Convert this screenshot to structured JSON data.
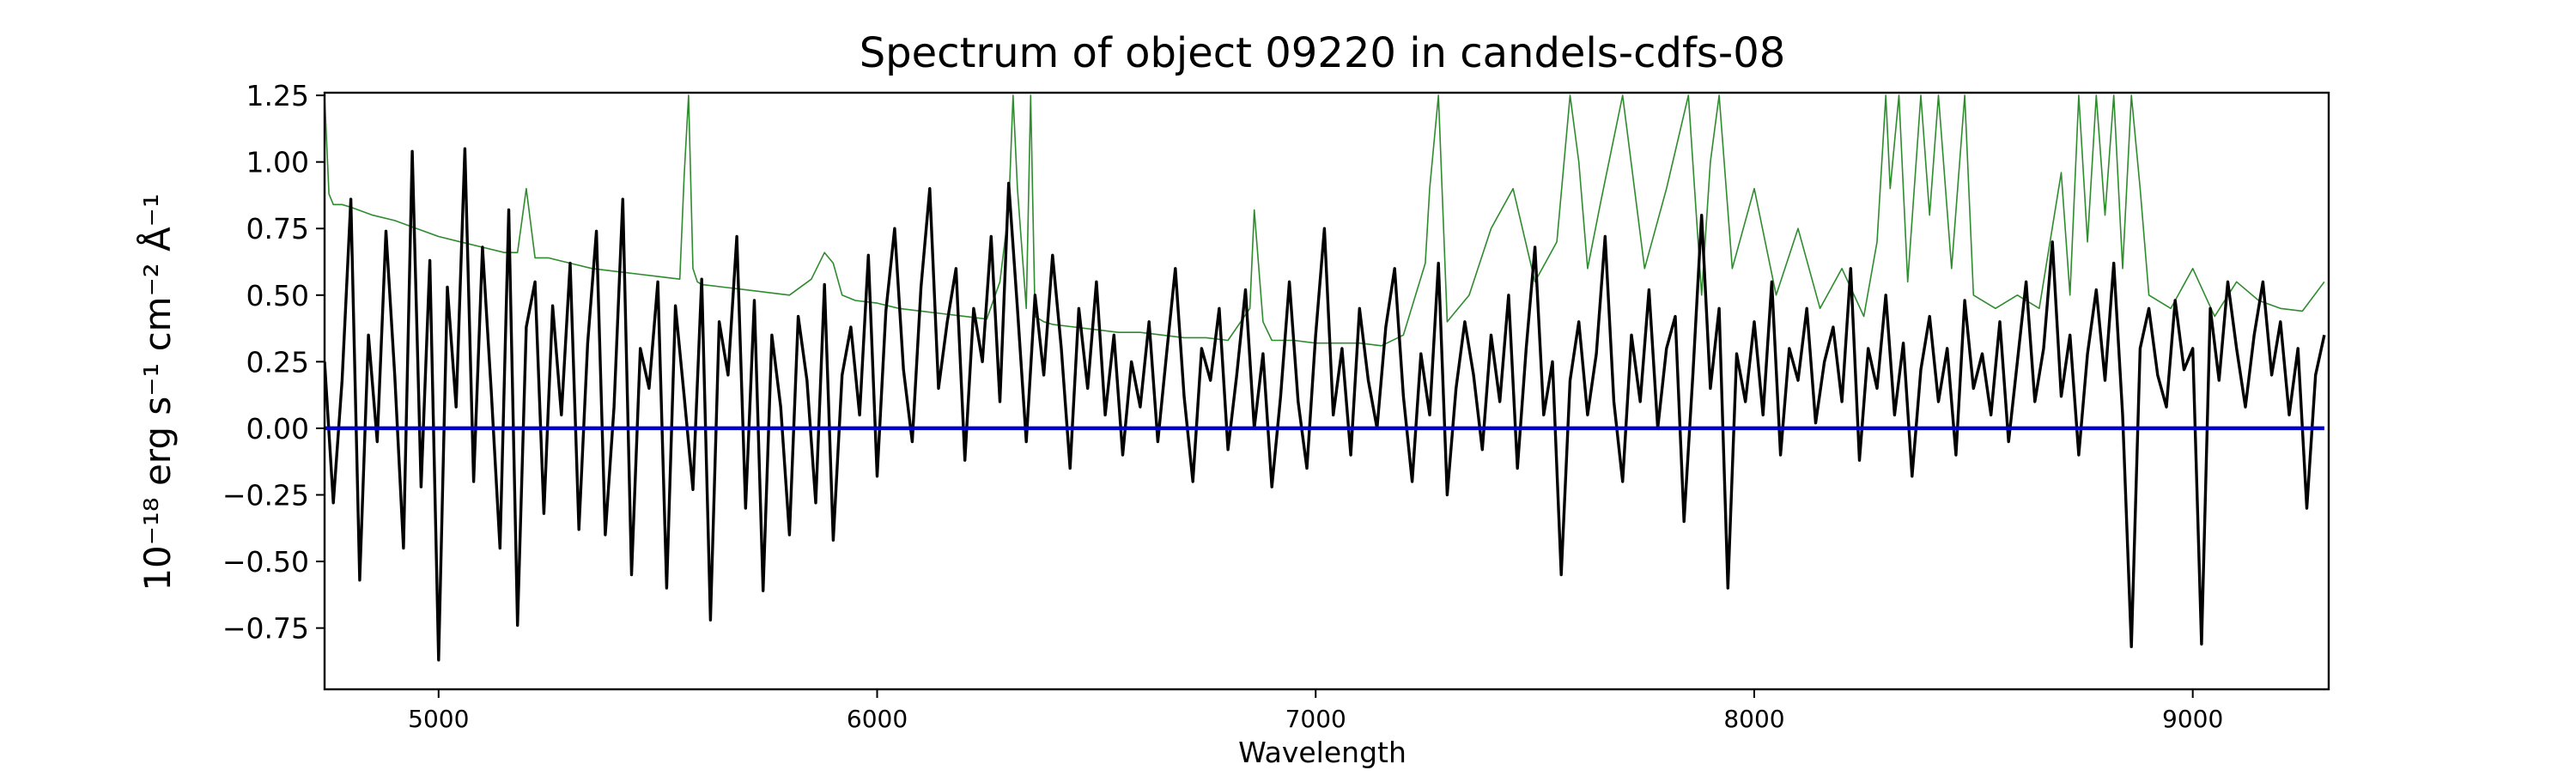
{
  "chart_data": {
    "type": "line",
    "title": "Spectrum of object 09220 in candels-cdfs-08",
    "xlabel": "Wavelength",
    "ylabel": "10⁻¹⁸ erg s⁻¹ cm⁻² Å⁻¹",
    "xlim": [
      4740,
      9310
    ],
    "ylim": [
      -0.98,
      1.26
    ],
    "xticks": [
      5000,
      6000,
      7000,
      8000,
      9000
    ],
    "yticks": [
      -0.75,
      -0.5,
      -0.25,
      0.0,
      0.25,
      0.5,
      0.75,
      1.0,
      1.25
    ],
    "ytick_labels": [
      "−0.75",
      "−0.50",
      "−0.25",
      "0.00",
      "0.25",
      "0.50",
      "0.75",
      "1.00",
      "1.25"
    ],
    "grid": false,
    "legend": "none",
    "series": [
      {
        "role": "flux",
        "color": "#000000",
        "x": [
          4740,
          4760,
          4780,
          4800,
          4820,
          4840,
          4860,
          4880,
          4900,
          4920,
          4940,
          4960,
          4980,
          5000,
          5020,
          5040,
          5060,
          5080,
          5100,
          5120,
          5140,
          5160,
          5180,
          5200,
          5220,
          5240,
          5260,
          5280,
          5300,
          5320,
          5340,
          5360,
          5380,
          5400,
          5420,
          5440,
          5460,
          5480,
          5500,
          5520,
          5540,
          5560,
          5580,
          5600,
          5620,
          5640,
          5660,
          5680,
          5700,
          5720,
          5740,
          5760,
          5780,
          5800,
          5820,
          5840,
          5860,
          5880,
          5900,
          5920,
          5940,
          5960,
          5980,
          6000,
          6020,
          6040,
          6060,
          6080,
          6100,
          6120,
          6140,
          6160,
          6180,
          6200,
          6220,
          6240,
          6260,
          6280,
          6300,
          6320,
          6340,
          6360,
          6380,
          6400,
          6420,
          6440,
          6460,
          6480,
          6500,
          6520,
          6540,
          6560,
          6580,
          6600,
          6620,
          6640,
          6660,
          6680,
          6700,
          6720,
          6740,
          6760,
          6780,
          6800,
          6820,
          6840,
          6860,
          6880,
          6900,
          6920,
          6940,
          6960,
          6980,
          7000,
          7020,
          7040,
          7060,
          7080,
          7100,
          7120,
          7140,
          7160,
          7180,
          7200,
          7220,
          7240,
          7260,
          7280,
          7300,
          7320,
          7340,
          7360,
          7380,
          7400,
          7420,
          7440,
          7460,
          7480,
          7500,
          7520,
          7540,
          7560,
          7580,
          7600,
          7620,
          7640,
          7660,
          7680,
          7700,
          7720,
          7740,
          7760,
          7780,
          7800,
          7820,
          7840,
          7860,
          7880,
          7900,
          7920,
          7940,
          7960,
          7980,
          8000,
          8020,
          8040,
          8060,
          8080,
          8100,
          8120,
          8140,
          8160,
          8180,
          8200,
          8220,
          8240,
          8260,
          8280,
          8300,
          8320,
          8340,
          8360,
          8380,
          8400,
          8420,
          8440,
          8460,
          8480,
          8500,
          8520,
          8540,
          8560,
          8580,
          8600,
          8620,
          8640,
          8660,
          8680,
          8700,
          8720,
          8740,
          8760,
          8780,
          8800,
          8820,
          8840,
          8860,
          8880,
          8900,
          8920,
          8940,
          8960,
          8980,
          9000,
          9020,
          9040,
          9060,
          9080,
          9100,
          9120,
          9140,
          9160,
          9180,
          9200,
          9220,
          9240,
          9260,
          9280,
          9300
        ],
        "y": [
          0.25,
          -0.28,
          0.18,
          0.86,
          -0.57,
          0.35,
          -0.05,
          0.74,
          0.2,
          -0.45,
          1.04,
          -0.22,
          0.63,
          -0.87,
          0.53,
          0.08,
          1.05,
          -0.2,
          0.68,
          0.14,
          -0.45,
          0.82,
          -0.74,
          0.38,
          0.55,
          -0.32,
          0.46,
          0.05,
          0.62,
          -0.38,
          0.32,
          0.74,
          -0.4,
          0.08,
          0.86,
          -0.55,
          0.3,
          0.15,
          0.55,
          -0.6,
          0.46,
          0.12,
          -0.23,
          0.56,
          -0.72,
          0.4,
          0.2,
          0.72,
          -0.3,
          0.48,
          -0.61,
          0.35,
          0.08,
          -0.4,
          0.42,
          0.18,
          -0.28,
          0.54,
          -0.42,
          0.2,
          0.38,
          0.05,
          0.65,
          -0.18,
          0.44,
          0.75,
          0.22,
          -0.05,
          0.53,
          0.9,
          0.15,
          0.4,
          0.6,
          -0.12,
          0.45,
          0.25,
          0.72,
          0.1,
          0.92,
          0.45,
          -0.05,
          0.5,
          0.2,
          0.65,
          0.3,
          -0.15,
          0.45,
          0.15,
          0.55,
          0.05,
          0.35,
          -0.1,
          0.25,
          0.08,
          0.4,
          -0.05,
          0.28,
          0.6,
          0.12,
          -0.2,
          0.3,
          0.18,
          0.45,
          -0.08,
          0.2,
          0.52,
          0.0,
          0.28,
          -0.22,
          0.12,
          0.55,
          0.1,
          -0.15,
          0.35,
          0.75,
          0.05,
          0.3,
          -0.1,
          0.45,
          0.18,
          0.0,
          0.38,
          0.6,
          0.12,
          -0.2,
          0.28,
          0.05,
          0.62,
          -0.25,
          0.15,
          0.4,
          0.2,
          -0.08,
          0.35,
          0.1,
          0.5,
          -0.15,
          0.3,
          0.68,
          0.05,
          0.25,
          -0.55,
          0.18,
          0.4,
          0.05,
          0.28,
          0.72,
          0.1,
          -0.2,
          0.35,
          0.1,
          0.52,
          0.0,
          0.3,
          0.42,
          -0.35,
          0.2,
          0.8,
          0.15,
          0.45,
          -0.6,
          0.28,
          0.1,
          0.4,
          0.05,
          0.55,
          -0.1,
          0.3,
          0.18,
          0.45,
          0.02,
          0.25,
          0.38,
          0.1,
          0.6,
          -0.12,
          0.3,
          0.15,
          0.5,
          0.05,
          0.32,
          -0.18,
          0.22,
          0.42,
          0.1,
          0.3,
          -0.1,
          0.48,
          0.15,
          0.28,
          0.05,
          0.4,
          -0.05,
          0.25,
          0.55,
          0.1,
          0.3,
          0.7,
          0.12,
          0.35,
          -0.1,
          0.28,
          0.52,
          0.18,
          0.62,
          0.05,
          -0.82,
          0.3,
          0.45,
          0.2,
          0.08,
          0.48,
          0.22,
          0.3,
          -0.81,
          0.45,
          0.18,
          0.55,
          0.3,
          0.08,
          0.35,
          0.55,
          0.2,
          0.4,
          0.05,
          0.3,
          -0.3,
          0.2,
          0.35
        ],
        "label": ""
      },
      {
        "role": "uncertainty",
        "color": "#2e8b2e",
        "x": [
          4740,
          4750,
          4760,
          4780,
          4800,
          4850,
          4900,
          4950,
          5000,
          5050,
          5100,
          5150,
          5180,
          5200,
          5220,
          5250,
          5300,
          5350,
          5400,
          5450,
          5500,
          5550,
          5560,
          5570,
          5580,
          5590,
          5600,
          5650,
          5700,
          5750,
          5800,
          5850,
          5880,
          5900,
          5920,
          5950,
          6000,
          6050,
          6100,
          6150,
          6200,
          6250,
          6280,
          6300,
          6310,
          6320,
          6340,
          6350,
          6360,
          6380,
          6400,
          6450,
          6500,
          6550,
          6600,
          6650,
          6700,
          6750,
          6800,
          6850,
          6860,
          6880,
          6900,
          6950,
          7000,
          7050,
          7100,
          7150,
          7200,
          7250,
          7260,
          7280,
          7300,
          7350,
          7400,
          7450,
          7500,
          7550,
          7580,
          7600,
          7620,
          7650,
          7700,
          7750,
          7800,
          7850,
          7880,
          7900,
          7920,
          7950,
          8000,
          8050,
          8100,
          8150,
          8200,
          8250,
          8280,
          8300,
          8310,
          8330,
          8350,
          8380,
          8400,
          8420,
          8450,
          8480,
          8500,
          8550,
          8600,
          8650,
          8700,
          8720,
          8740,
          8760,
          8780,
          8800,
          8820,
          8840,
          8860,
          8880,
          8900,
          8950,
          9000,
          9050,
          9100,
          9150,
          9200,
          9250,
          9300
        ],
        "y": [
          1.25,
          0.88,
          0.84,
          0.84,
          0.83,
          0.8,
          0.78,
          0.75,
          0.72,
          0.7,
          0.68,
          0.66,
          0.66,
          0.9,
          0.64,
          0.64,
          0.62,
          0.6,
          0.59,
          0.58,
          0.57,
          0.56,
          0.95,
          1.25,
          0.6,
          0.55,
          0.54,
          0.53,
          0.52,
          0.51,
          0.5,
          0.56,
          0.66,
          0.62,
          0.5,
          0.48,
          0.47,
          0.45,
          0.44,
          0.43,
          0.42,
          0.41,
          0.55,
          0.82,
          1.25,
          0.9,
          0.45,
          1.25,
          0.42,
          0.4,
          0.39,
          0.38,
          0.37,
          0.36,
          0.36,
          0.35,
          0.34,
          0.34,
          0.33,
          0.45,
          0.82,
          0.4,
          0.33,
          0.33,
          0.32,
          0.32,
          0.32,
          0.31,
          0.35,
          0.62,
          0.9,
          1.25,
          0.4,
          0.5,
          0.75,
          0.9,
          0.55,
          0.7,
          1.25,
          1.0,
          0.6,
          0.85,
          1.25,
          0.6,
          0.9,
          1.25,
          0.5,
          1.0,
          1.25,
          0.6,
          0.9,
          0.5,
          0.75,
          0.45,
          0.6,
          0.42,
          0.7,
          1.25,
          0.9,
          1.25,
          0.55,
          1.25,
          0.8,
          1.25,
          0.6,
          1.25,
          0.5,
          0.45,
          0.5,
          0.45,
          0.96,
          0.5,
          1.25,
          0.7,
          1.25,
          0.8,
          1.25,
          0.6,
          1.25,
          0.9,
          0.5,
          0.45,
          0.6,
          0.42,
          0.55,
          0.48,
          0.45,
          0.44,
          0.55
        ],
        "label": ""
      },
      {
        "role": "zero",
        "color": "#0000cc",
        "x": [
          4740,
          9300
        ],
        "y": [
          0.0,
          0.0
        ],
        "label": ""
      }
    ]
  }
}
